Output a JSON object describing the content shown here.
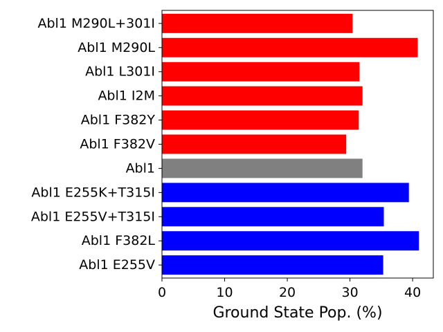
{
  "chart_data": {
    "type": "bar",
    "orientation": "horizontal",
    "title": "",
    "xlabel": "Ground State Pop. (%)",
    "ylabel": "",
    "xlim": [
      0,
      43.3
    ],
    "xticks": [
      0,
      10,
      20,
      30,
      40
    ],
    "grid": false,
    "legend": "none",
    "categories": [
      "Abl1 M290L+301I",
      "Abl1 M290L",
      "Abl1 L301I",
      "Abl1 I2M",
      "Abl1 F382Y",
      "Abl1 F382V",
      "Abl1",
      "Abl1 E255K+T315I",
      "Abl1 E255V+T315I",
      "Abl1 F382L",
      "Abl1 E255V"
    ],
    "values": [
      30.4,
      40.8,
      31.5,
      32.0,
      31.4,
      29.4,
      32.0,
      39.4,
      35.4,
      41.0,
      35.3
    ],
    "colors": [
      "#ff0000",
      "#ff0000",
      "#ff0000",
      "#ff0000",
      "#ff0000",
      "#ff0000",
      "#808080",
      "#0000ff",
      "#0000ff",
      "#0000ff",
      "#0000ff"
    ]
  }
}
